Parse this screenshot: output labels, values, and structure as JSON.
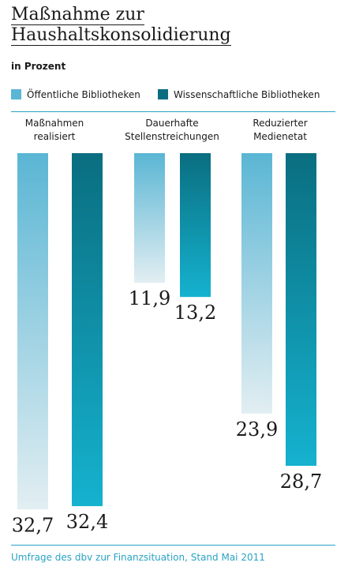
{
  "title_lines": [
    "Maßnahme zur",
    "Haushaltskonsolidierung"
  ],
  "subtitle": "in Prozent",
  "footer": "Umfrage des dbv zur Finanzsituation, Stand Mai 2011",
  "colors": {
    "public_top": "#5ab6d4",
    "public_bottom": "#e2eef2",
    "scientific_top": "#0a6e80",
    "scientific_bottom": "#15b2cf",
    "accent": "#2aa3c3"
  },
  "chart_data": {
    "type": "bar",
    "orientation": "vertical-downward",
    "title": "Maßnahme zur Haushaltskonsolidierung",
    "ylabel": "in Prozent",
    "categories": [
      [
        "Maßnahmen",
        "realisiert"
      ],
      [
        "Dauerhafte",
        "Stellenstreichungen"
      ],
      [
        "Reduzierter",
        "Medienetat"
      ]
    ],
    "series": [
      {
        "name": "Öffentliche Bibliotheken",
        "values": [
          32.7,
          11.9,
          23.9
        ],
        "labels": [
          "32,7",
          "11,9",
          "23,9"
        ]
      },
      {
        "name": "Wissenschaftliche Bibliotheken",
        "values": [
          32.4,
          13.2,
          28.7
        ],
        "labels": [
          "32,4",
          "13,2",
          "28,7"
        ]
      }
    ],
    "legend": "top",
    "grid": false
  }
}
